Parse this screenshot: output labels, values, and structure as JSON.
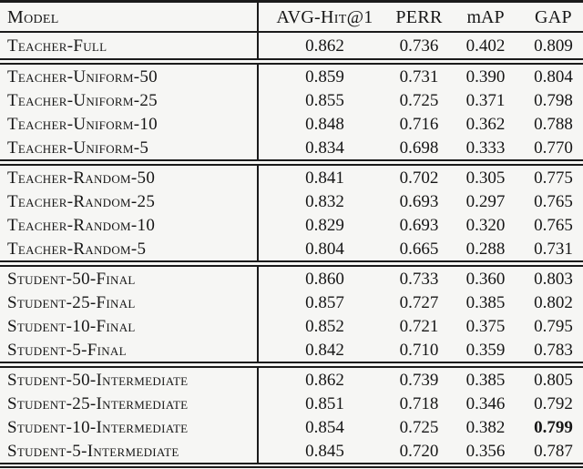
{
  "page": {
    "background_color": "#f6f6f4",
    "text_color": "#161616",
    "rule_color": "#1b1b1b"
  },
  "table": {
    "columns": [
      {
        "label": "Model"
      },
      {
        "label": "AVG-Hit@1"
      },
      {
        "label": "PERR"
      },
      {
        "label": "mAP"
      },
      {
        "label": "GAP"
      }
    ],
    "sections": [
      {
        "name": "teacher-full",
        "rows": [
          {
            "model": "Teacher-Full",
            "values": [
              "0.862",
              "0.736",
              "0.402",
              "0.809"
            ],
            "bold": []
          }
        ]
      },
      {
        "name": "teacher-uniform",
        "rows": [
          {
            "model": "Teacher-Uniform-50",
            "values": [
              "0.859",
              "0.731",
              "0.390",
              "0.804"
            ],
            "bold": []
          },
          {
            "model": "Teacher-Uniform-25",
            "values": [
              "0.855",
              "0.725",
              "0.371",
              "0.798"
            ],
            "bold": []
          },
          {
            "model": "Teacher-Uniform-10",
            "values": [
              "0.848",
              "0.716",
              "0.362",
              "0.788"
            ],
            "bold": []
          },
          {
            "model": "Teacher-Uniform-5",
            "values": [
              "0.834",
              "0.698",
              "0.333",
              "0.770"
            ],
            "bold": []
          }
        ]
      },
      {
        "name": "teacher-random",
        "rows": [
          {
            "model": "Teacher-Random-50",
            "values": [
              "0.841",
              "0.702",
              "0.305",
              "0.775"
            ],
            "bold": []
          },
          {
            "model": "Teacher-Random-25",
            "values": [
              "0.832",
              "0.693",
              "0.297",
              "0.765"
            ],
            "bold": []
          },
          {
            "model": "Teacher-Random-10",
            "values": [
              "0.829",
              "0.693",
              "0.320",
              "0.765"
            ],
            "bold": []
          },
          {
            "model": "Teacher-Random-5",
            "values": [
              "0.804",
              "0.665",
              "0.288",
              "0.731"
            ],
            "bold": []
          }
        ]
      },
      {
        "name": "student-final",
        "rows": [
          {
            "model": "Student-50-Final",
            "values": [
              "0.860",
              "0.733",
              "0.360",
              "0.803"
            ],
            "bold": []
          },
          {
            "model": "Student-25-Final",
            "values": [
              "0.857",
              "0.727",
              "0.385",
              "0.802"
            ],
            "bold": []
          },
          {
            "model": "Student-10-Final",
            "values": [
              "0.852",
              "0.721",
              "0.375",
              "0.795"
            ],
            "bold": []
          },
          {
            "model": "Student-5-Final",
            "values": [
              "0.842",
              "0.710",
              "0.359",
              "0.783"
            ],
            "bold": []
          }
        ]
      },
      {
        "name": "student-intermediate",
        "rows": [
          {
            "model": "Student-50-Intermediate",
            "values": [
              "0.862",
              "0.739",
              "0.385",
              "0.805"
            ],
            "bold": []
          },
          {
            "model": "Student-25-Intermediate",
            "values": [
              "0.851",
              "0.718",
              "0.346",
              "0.792"
            ],
            "bold": []
          },
          {
            "model": "Student-10-Intermediate",
            "values": [
              "0.854",
              "0.725",
              "0.382",
              "0.799"
            ],
            "bold": [
              3
            ]
          },
          {
            "model": "Student-5-Intermediate",
            "values": [
              "0.845",
              "0.720",
              "0.356",
              "0.787"
            ],
            "bold": []
          }
        ]
      }
    ]
  },
  "chart_data": {
    "type": "table",
    "title": "",
    "columns": [
      "Model",
      "AVG-Hit@1",
      "PERR",
      "mAP",
      "GAP"
    ],
    "rows": [
      [
        "Teacher-Full",
        0.862,
        0.736,
        0.402,
        0.809
      ],
      [
        "Teacher-Uniform-50",
        0.859,
        0.731,
        0.39,
        0.804
      ],
      [
        "Teacher-Uniform-25",
        0.855,
        0.725,
        0.371,
        0.798
      ],
      [
        "Teacher-Uniform-10",
        0.848,
        0.716,
        0.362,
        0.788
      ],
      [
        "Teacher-Uniform-5",
        0.834,
        0.698,
        0.333,
        0.77
      ],
      [
        "Teacher-Random-50",
        0.841,
        0.702,
        0.305,
        0.775
      ],
      [
        "Teacher-Random-25",
        0.832,
        0.693,
        0.297,
        0.765
      ],
      [
        "Teacher-Random-10",
        0.829,
        0.693,
        0.32,
        0.765
      ],
      [
        "Teacher-Random-5",
        0.804,
        0.665,
        0.288,
        0.731
      ],
      [
        "Student-50-Final",
        0.86,
        0.733,
        0.36,
        0.803
      ],
      [
        "Student-25-Final",
        0.857,
        0.727,
        0.385,
        0.802
      ],
      [
        "Student-10-Final",
        0.852,
        0.721,
        0.375,
        0.795
      ],
      [
        "Student-5-Final",
        0.842,
        0.71,
        0.359,
        0.783
      ],
      [
        "Student-50-Intermediate",
        0.862,
        0.739,
        0.385,
        0.805
      ],
      [
        "Student-25-Intermediate",
        0.851,
        0.718,
        0.346,
        0.792
      ],
      [
        "Student-10-Intermediate",
        0.854,
        0.725,
        0.382,
        0.799
      ],
      [
        "Student-5-Intermediate",
        0.845,
        0.72,
        0.356,
        0.787
      ]
    ],
    "notes": "GAP value 0.799 of Student-10-Intermediate is bold"
  }
}
